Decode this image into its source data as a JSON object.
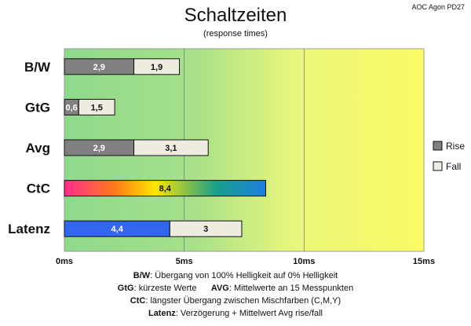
{
  "brand": "AOC Agon PD27",
  "chart_data": {
    "type": "bar",
    "orientation": "horizontal",
    "stacked": true,
    "title": "Schaltzeiten",
    "subtitle": "(response times)",
    "categories": [
      "B/W",
      "GtG",
      "Avg",
      "CtC",
      "Latenz"
    ],
    "series": [
      {
        "name": "Rise",
        "values": [
          2.9,
          0.6,
          2.9,
          8.4,
          4.4
        ],
        "labels": [
          "2,9",
          "0,6",
          "2,9",
          "8,4",
          "4,4"
        ],
        "color": "#808080"
      },
      {
        "name": "Fall",
        "values": [
          1.9,
          1.5,
          3.1,
          null,
          3
        ],
        "labels": [
          "1,9",
          "1,5",
          "3,1",
          "",
          "3"
        ],
        "color": "#eeece1"
      }
    ],
    "special_colors": {
      "CtC": "rainbow",
      "Latenz": "#3366ee"
    },
    "x_ticks": [
      {
        "value": 0,
        "label": "0ms"
      },
      {
        "value": 5,
        "label": "5ms"
      },
      {
        "value": 10,
        "label": "10ms"
      },
      {
        "value": 15,
        "label": "15ms"
      }
    ],
    "xlim": [
      0,
      15
    ],
    "grid": true,
    "legend": "right",
    "background": "gradient green to yellow"
  },
  "notes": [
    {
      "label": "B/W",
      "text": ":  Übergang von 100% Helligkeit auf 0% Helligkeit"
    },
    {
      "label": "GtG",
      "text": ": kürzeste  Werte",
      "label2": "AVG",
      "text2": ": Mittelwerte  an 15 Messpunkten"
    },
    {
      "label": "CtC",
      "text": ": längster Übergang  zwischen Mischfarben  (C,M,Y)"
    },
    {
      "label": "Latenz",
      "text": ": Verzögerung  + Mittelwert  Avg rise/fall"
    }
  ]
}
